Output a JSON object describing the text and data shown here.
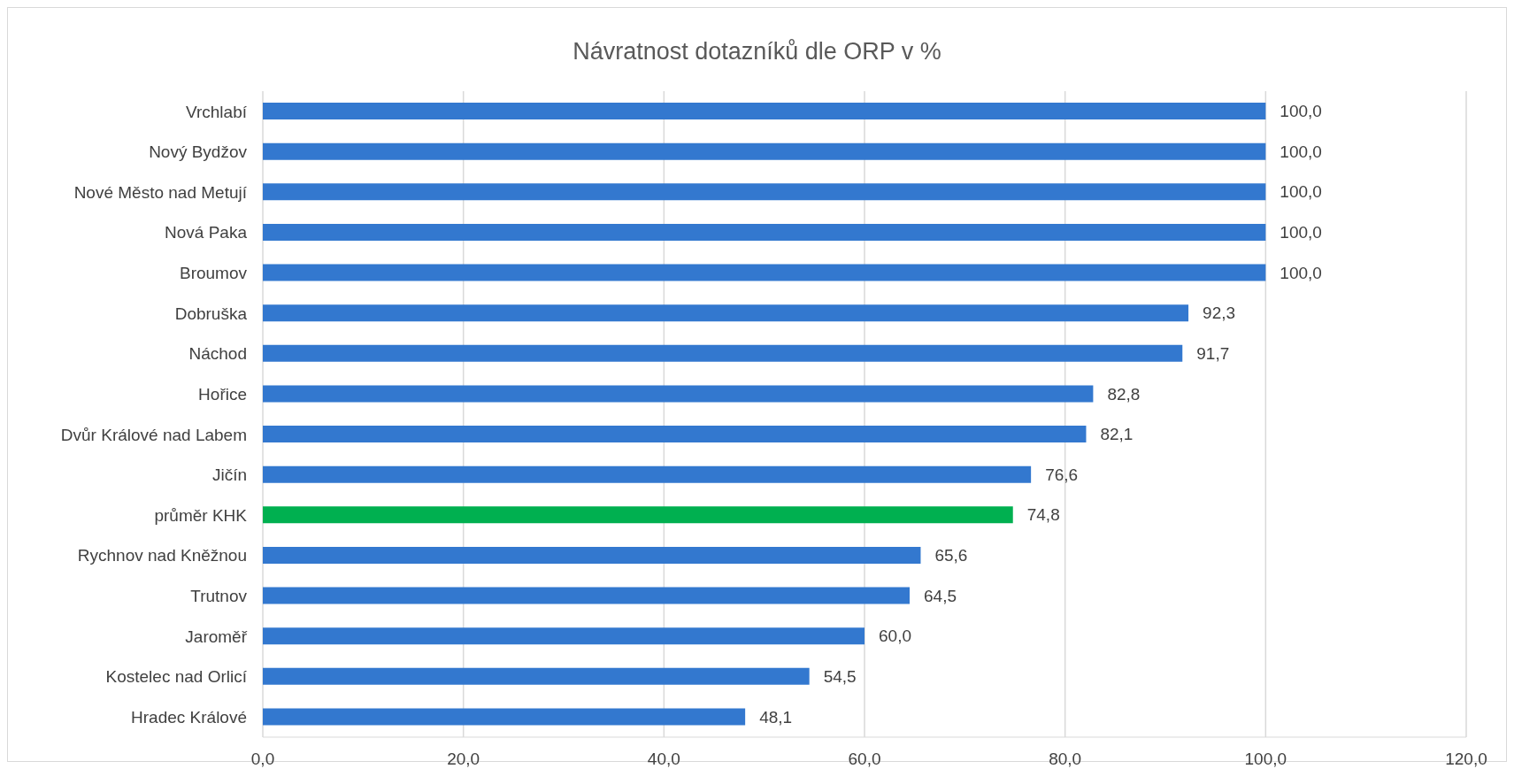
{
  "chart_data": {
    "type": "bar",
    "orientation": "horizontal",
    "title": "Návratnost dotazníků dle ORP v %",
    "categories": [
      "Vrchlabí",
      "Nový Bydžov",
      "Nové Město nad Metují",
      "Nová Paka",
      "Broumov",
      "Dobruška",
      "Náchod",
      "Hořice",
      "Dvůr Králové nad Labem",
      "Jičín",
      "průměr KHK",
      "Rychnov nad Kněžnou",
      "Trutnov",
      "Jaroměř",
      "Kostelec nad Orlicí",
      "Hradec Králové"
    ],
    "values": [
      100.0,
      100.0,
      100.0,
      100.0,
      100.0,
      92.3,
      91.7,
      82.8,
      82.1,
      76.6,
      74.8,
      65.6,
      64.5,
      60.0,
      54.5,
      48.1
    ],
    "value_labels": [
      "100,0",
      "100,0",
      "100,0",
      "100,0",
      "100,0",
      "92,3",
      "91,7",
      "82,8",
      "82,1",
      "76,6",
      "74,8",
      "65,6",
      "64,5",
      "60,0",
      "54,5",
      "48,1"
    ],
    "colors": [
      "#3378cf",
      "#3378cf",
      "#3378cf",
      "#3378cf",
      "#3378cf",
      "#3378cf",
      "#3378cf",
      "#3378cf",
      "#3378cf",
      "#3378cf",
      "#00b050",
      "#3378cf",
      "#3378cf",
      "#3378cf",
      "#3378cf",
      "#3378cf"
    ],
    "xlim": [
      0,
      120
    ],
    "xticks": [
      {
        "value": 0,
        "label": "0,0"
      },
      {
        "value": 20,
        "label": "20,0"
      },
      {
        "value": 40,
        "label": "40,0"
      },
      {
        "value": 60,
        "label": "60,0"
      },
      {
        "value": 80,
        "label": "80,0"
      },
      {
        "value": 100,
        "label": "100,0"
      },
      {
        "value": 120,
        "label": "120,0"
      }
    ],
    "grid": "x",
    "legend": false
  }
}
